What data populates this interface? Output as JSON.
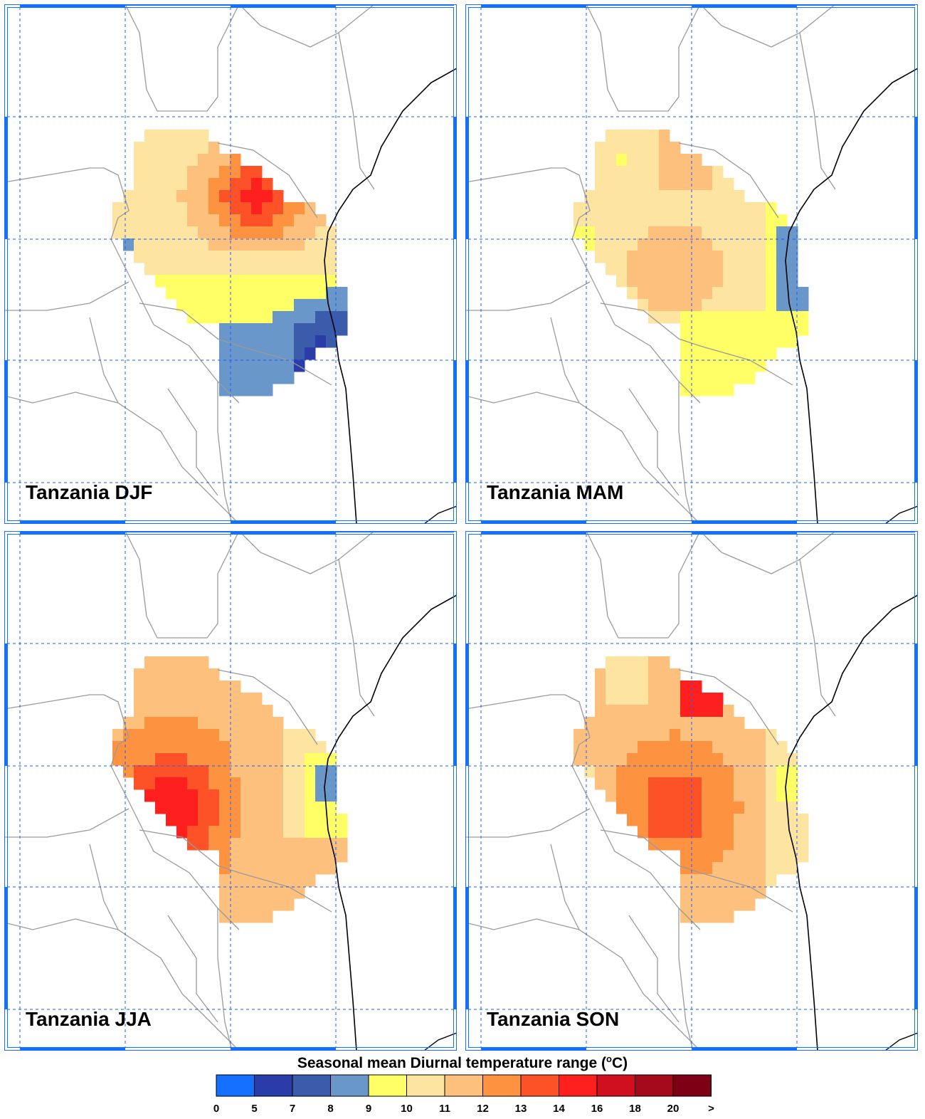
{
  "panels": [
    {
      "id": "djf",
      "label": "Tanzania DJF"
    },
    {
      "id": "mam",
      "label": "Tanzania MAM"
    },
    {
      "id": "jja",
      "label": "Tanzania JJA"
    },
    {
      "id": "son",
      "label": "Tanzania SON"
    }
  ],
  "colorbar": {
    "title_main": "Seasonal mean Diurnal temperature range (",
    "title_sup": "o",
    "title_end": "C)",
    "colors": [
      "#1471ff",
      "#2a3ca8",
      "#3a5cab",
      "#6a97c9",
      "#ffff66",
      "#fde4a0",
      "#fdc07d",
      "#fd9340",
      "#fd5128",
      "#fe1f1f",
      "#d0101f",
      "#a5091c",
      "#7d0015"
    ],
    "tick_labels": [
      "0",
      "5",
      "7",
      "8",
      "9",
      "10",
      "11",
      "12",
      "13",
      "14",
      "16",
      "18",
      "20",
      ">"
    ]
  },
  "colors": {
    "grid": "#1a5cff",
    "frame": "#1471ff",
    "borders": "#9a9a9a",
    "coast": "#000000"
  }
}
